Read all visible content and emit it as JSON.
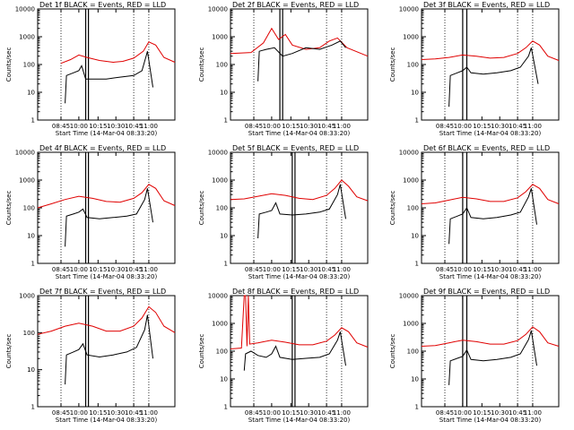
{
  "chart_data": [
    {
      "type": "line",
      "title": "Det 1f BLACK = Events, RED = LLD",
      "xlabel": "Start Time (14-Mar-04 08:33:20)",
      "ylabel": "Counts/sec",
      "y_scale": "log",
      "ylim": [
        1,
        10000
      ],
      "x_ticks": [
        "08:45",
        "10:00",
        "10:15",
        "10:30",
        "10:45",
        "11:00"
      ],
      "y_ticks": [
        "1",
        "10",
        "100",
        "1000",
        "10000"
      ],
      "series": [
        {
          "name": "RED = LLD",
          "color": "#e00000",
          "t": [
            0.17,
            0.24,
            0.3,
            0.36,
            0.45,
            0.55,
            0.62,
            0.7,
            0.77,
            0.81,
            0.86,
            0.92,
            1.0
          ],
          "v": [
            110,
            150,
            220,
            180,
            140,
            120,
            130,
            170,
            300,
            650,
            500,
            180,
            120
          ]
        },
        {
          "name": "BLACK = Events",
          "color": "#000000",
          "t": [
            0.2,
            0.21,
            0.26,
            0.3,
            0.32,
            0.35,
            0.4,
            0.5,
            0.6,
            0.7,
            0.76,
            0.79,
            0.8,
            0.84
          ],
          "v": [
            4,
            40,
            50,
            60,
            90,
            30,
            30,
            30,
            35,
            40,
            60,
            200,
            300,
            15
          ]
        }
      ]
    },
    {
      "type": "line",
      "title": "Det 2f BLACK = Events, RED = LLD",
      "xlabel": "Start Time (14-Mar-04 08:33:20)",
      "ylabel": "Counts/sec",
      "y_scale": "log",
      "ylim": [
        1,
        10000
      ],
      "x_ticks": [
        "08:45",
        "10:00",
        "10:15",
        "10:30",
        "10:45",
        "11:00"
      ],
      "y_ticks": [
        "1",
        "10",
        "100",
        "1000",
        "10000"
      ],
      "series": [
        {
          "name": "RED = LLD",
          "color": "#e00000",
          "t": [
            0.0,
            0.15,
            0.24,
            0.3,
            0.35,
            0.4,
            0.45,
            0.55,
            0.65,
            0.72,
            0.78,
            0.85,
            1.0
          ],
          "v": [
            250,
            270,
            600,
            2000,
            800,
            1200,
            500,
            350,
            400,
            700,
            900,
            400,
            200
          ]
        },
        {
          "name": "BLACK = Events",
          "color": "#000000",
          "t": [
            0.2,
            0.21,
            0.26,
            0.32,
            0.38,
            0.45,
            0.55,
            0.65,
            0.74,
            0.8,
            0.84
          ],
          "v": [
            25,
            300,
            350,
            400,
            200,
            250,
            400,
            350,
            500,
            700,
            400
          ]
        }
      ]
    },
    {
      "type": "line",
      "title": "Det 3f BLACK = Events, RED = LLD",
      "xlabel": "Start Time (14-Mar-04 08:33:20)",
      "ylabel": "Counts/sec",
      "y_scale": "log",
      "ylim": [
        1,
        10000
      ],
      "x_ticks": [
        "08:45",
        "10:00",
        "10:15",
        "10:30",
        "10:45",
        "11:00"
      ],
      "y_ticks": [
        "1",
        "10",
        "100",
        "1000",
        "10000"
      ],
      "series": [
        {
          "name": "RED = LLD",
          "color": "#e00000",
          "t": [
            0.0,
            0.1,
            0.2,
            0.3,
            0.4,
            0.5,
            0.6,
            0.7,
            0.76,
            0.81,
            0.86,
            0.92,
            1.0
          ],
          "v": [
            150,
            160,
            180,
            220,
            200,
            170,
            180,
            250,
            400,
            700,
            500,
            200,
            140
          ]
        },
        {
          "name": "BLACK = Events",
          "color": "#000000",
          "t": [
            0.2,
            0.21,
            0.26,
            0.3,
            0.33,
            0.36,
            0.45,
            0.55,
            0.65,
            0.72,
            0.78,
            0.8,
            0.85
          ],
          "v": [
            3,
            40,
            50,
            60,
            80,
            50,
            45,
            50,
            60,
            80,
            200,
            400,
            20
          ]
        }
      ]
    },
    {
      "type": "line",
      "title": "Det 4f BLACK = Events, RED = LLD",
      "xlabel": "Start Time (14-Mar-04 08:33:20)",
      "ylabel": "Counts/sec",
      "y_scale": "log",
      "ylim": [
        1,
        10000
      ],
      "x_ticks": [
        "08:45",
        "10:00",
        "10:15",
        "10:30",
        "10:45",
        "11:00"
      ],
      "y_ticks": [
        "1",
        "10",
        "100",
        "1000",
        "10000"
      ],
      "series": [
        {
          "name": "RED = LLD",
          "color": "#e00000",
          "t": [
            0.0,
            0.1,
            0.2,
            0.3,
            0.4,
            0.5,
            0.6,
            0.7,
            0.76,
            0.81,
            0.86,
            0.92,
            1.0
          ],
          "v": [
            100,
            140,
            200,
            260,
            220,
            170,
            160,
            220,
            350,
            700,
            500,
            180,
            120
          ]
        },
        {
          "name": "BLACK = Events",
          "color": "#000000",
          "t": [
            0.2,
            0.21,
            0.26,
            0.3,
            0.33,
            0.36,
            0.45,
            0.55,
            0.65,
            0.72,
            0.78,
            0.8,
            0.84
          ],
          "v": [
            4,
            50,
            60,
            70,
            90,
            45,
            40,
            45,
            50,
            60,
            200,
            500,
            30
          ]
        }
      ]
    },
    {
      "type": "line",
      "title": "Det 5f BLACK = Events, RED = LLD",
      "xlabel": "Start Time (14-Mar-04 08:33:20)",
      "ylabel": "Counts/sec",
      "y_scale": "log",
      "ylim": [
        1,
        10000
      ],
      "x_ticks": [
        "08:45",
        "10:00",
        "10:15",
        "10:30",
        "10:45",
        "11:00"
      ],
      "y_ticks": [
        "1",
        "10",
        "100",
        "1000",
        "10000"
      ],
      "series": [
        {
          "name": "RED = LLD",
          "color": "#e00000",
          "t": [
            0.0,
            0.1,
            0.2,
            0.3,
            0.4,
            0.5,
            0.6,
            0.7,
            0.76,
            0.81,
            0.86,
            0.92,
            1.0
          ],
          "v": [
            200,
            210,
            260,
            320,
            280,
            220,
            200,
            280,
            500,
            1000,
            600,
            250,
            180
          ]
        },
        {
          "name": "BLACK = Events",
          "color": "#000000",
          "t": [
            0.2,
            0.21,
            0.26,
            0.3,
            0.33,
            0.36,
            0.45,
            0.55,
            0.65,
            0.72,
            0.78,
            0.8,
            0.84
          ],
          "v": [
            8,
            60,
            70,
            80,
            150,
            60,
            55,
            60,
            70,
            90,
            300,
            700,
            40
          ]
        }
      ]
    },
    {
      "type": "line",
      "title": "Det 6f BLACK = Events, RED = LLD",
      "xlabel": "Start Time (14-Mar-04 08:33:20)",
      "ylabel": "Counts/sec",
      "y_scale": "log",
      "ylim": [
        1,
        10000
      ],
      "x_ticks": [
        "08:45",
        "10:00",
        "10:15",
        "10:30",
        "10:45",
        "11:00"
      ],
      "y_ticks": [
        "1",
        "10",
        "100",
        "1000",
        "10000"
      ],
      "series": [
        {
          "name": "RED = LLD",
          "color": "#e00000",
          "t": [
            0.0,
            0.1,
            0.2,
            0.3,
            0.4,
            0.5,
            0.6,
            0.7,
            0.76,
            0.81,
            0.86,
            0.92,
            1.0
          ],
          "v": [
            140,
            150,
            190,
            240,
            210,
            170,
            170,
            230,
            380,
            700,
            500,
            200,
            140
          ]
        },
        {
          "name": "BLACK = Events",
          "color": "#000000",
          "t": [
            0.2,
            0.21,
            0.26,
            0.3,
            0.33,
            0.36,
            0.45,
            0.55,
            0.65,
            0.72,
            0.78,
            0.8,
            0.84
          ],
          "v": [
            5,
            40,
            50,
            60,
            100,
            45,
            40,
            45,
            55,
            70,
            250,
            500,
            25
          ]
        }
      ]
    },
    {
      "type": "line",
      "title": "Det 7f BLACK = Events, RED = LLD",
      "xlabel": "Start Time (14-Mar-04 08:33:20)",
      "ylabel": "Counts/sec",
      "y_scale": "log",
      "ylim": [
        1,
        1000
      ],
      "x_ticks": [
        "08:45",
        "10:00",
        "10:15",
        "10:30",
        "10:45",
        "11:00"
      ],
      "y_ticks": [
        "1",
        "10",
        "100",
        "1000"
      ],
      "series": [
        {
          "name": "RED = LLD",
          "color": "#e00000",
          "t": [
            0.0,
            0.1,
            0.2,
            0.3,
            0.4,
            0.5,
            0.6,
            0.7,
            0.76,
            0.81,
            0.86,
            0.92,
            1.0
          ],
          "v": [
            90,
            110,
            150,
            180,
            150,
            110,
            110,
            150,
            250,
            500,
            350,
            150,
            100
          ]
        },
        {
          "name": "BLACK = Events",
          "color": "#000000",
          "t": [
            0.2,
            0.21,
            0.26,
            0.3,
            0.33,
            0.36,
            0.45,
            0.55,
            0.65,
            0.72,
            0.78,
            0.8,
            0.84
          ],
          "v": [
            4,
            25,
            30,
            35,
            50,
            25,
            22,
            25,
            30,
            40,
            120,
            300,
            20
          ]
        }
      ]
    },
    {
      "type": "line",
      "title": "Det 8f BLACK = Events, RED = LLD",
      "xlabel": "Start Time (14-Mar-04 08:33:20)",
      "ylabel": "Counts/sec",
      "y_scale": "log",
      "ylim": [
        1,
        10000
      ],
      "x_ticks": [
        "08:45",
        "10:00",
        "10:15",
        "10:30",
        "10:45",
        "11:00"
      ],
      "y_ticks": [
        "1",
        "10",
        "100",
        "1000",
        "10000"
      ],
      "series": [
        {
          "name": "RED = LLD",
          "color": "#e00000",
          "t": [
            0.0,
            0.08,
            0.1,
            0.11,
            0.12,
            0.13,
            0.14,
            0.2,
            0.3,
            0.4,
            0.5,
            0.6,
            0.7,
            0.76,
            0.81,
            0.86,
            0.92,
            1.0
          ],
          "v": [
            120,
            130,
            10000,
            10000,
            150,
            10000,
            180,
            200,
            250,
            210,
            170,
            170,
            230,
            380,
            700,
            500,
            200,
            140
          ]
        },
        {
          "name": "BLACK = Events",
          "color": "#000000",
          "t": [
            0.1,
            0.11,
            0.15,
            0.2,
            0.26,
            0.3,
            0.33,
            0.36,
            0.45,
            0.55,
            0.65,
            0.72,
            0.78,
            0.8,
            0.84
          ],
          "v": [
            20,
            80,
            100,
            70,
            60,
            80,
            150,
            60,
            50,
            55,
            60,
            80,
            250,
            500,
            30
          ]
        }
      ]
    },
    {
      "type": "line",
      "title": "Det 9f BLACK = Events, RED = LLD",
      "xlabel": "Start Time (14-Mar-04 08:33:20)",
      "ylabel": "Counts/sec",
      "y_scale": "log",
      "ylim": [
        1,
        10000
      ],
      "x_ticks": [
        "08:45",
        "10:00",
        "10:15",
        "10:30",
        "10:45",
        "11:00"
      ],
      "y_ticks": [
        "1",
        "10",
        "100",
        "1000",
        "10000"
      ],
      "series": [
        {
          "name": "RED = LLD",
          "color": "#e00000",
          "t": [
            0.0,
            0.1,
            0.2,
            0.3,
            0.4,
            0.5,
            0.6,
            0.7,
            0.76,
            0.81,
            0.86,
            0.92,
            1.0
          ],
          "v": [
            150,
            160,
            200,
            250,
            220,
            180,
            180,
            240,
            400,
            750,
            500,
            200,
            150
          ]
        },
        {
          "name": "BLACK = Events",
          "color": "#000000",
          "t": [
            0.2,
            0.21,
            0.26,
            0.3,
            0.33,
            0.36,
            0.45,
            0.55,
            0.65,
            0.72,
            0.78,
            0.8,
            0.84
          ],
          "v": [
            6,
            45,
            55,
            65,
            110,
            50,
            45,
            50,
            60,
            80,
            260,
            550,
            30
          ]
        }
      ]
    }
  ]
}
